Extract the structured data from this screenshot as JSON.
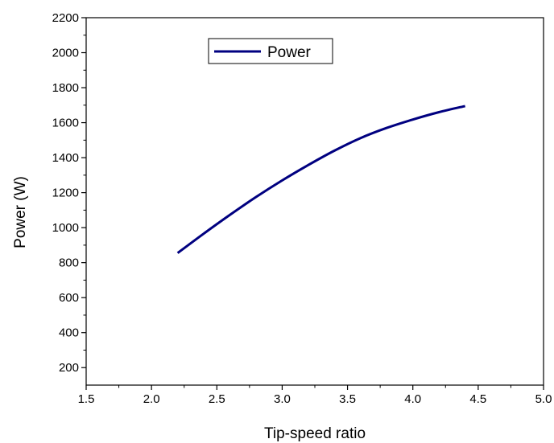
{
  "chart_data": {
    "type": "line",
    "title": "",
    "xlabel": "Tip-speed ratio",
    "ylabel": "Power (W)",
    "xlim": [
      1.5,
      5.0
    ],
    "ylim": [
      100,
      2200
    ],
    "x_ticks": [
      "1.5",
      "2.0",
      "2.5",
      "3.0",
      "3.5",
      "4.0",
      "4.5",
      "5.0"
    ],
    "y_ticks": [
      "200",
      "400",
      "600",
      "800",
      "1000",
      "1200",
      "1400",
      "1600",
      "1800",
      "2000",
      "2200"
    ],
    "grid": false,
    "legend_position": "top-center",
    "series": [
      {
        "name": "Power",
        "color": "#000080",
        "x": [
          2.2,
          2.4,
          2.6,
          2.8,
          3.0,
          3.2,
          3.4,
          3.6,
          3.8,
          4.0,
          4.2,
          4.4
        ],
        "y": [
          855,
          966,
          1073,
          1175,
          1270,
          1358,
          1440,
          1512,
          1570,
          1618,
          1660,
          1695
        ]
      }
    ]
  }
}
